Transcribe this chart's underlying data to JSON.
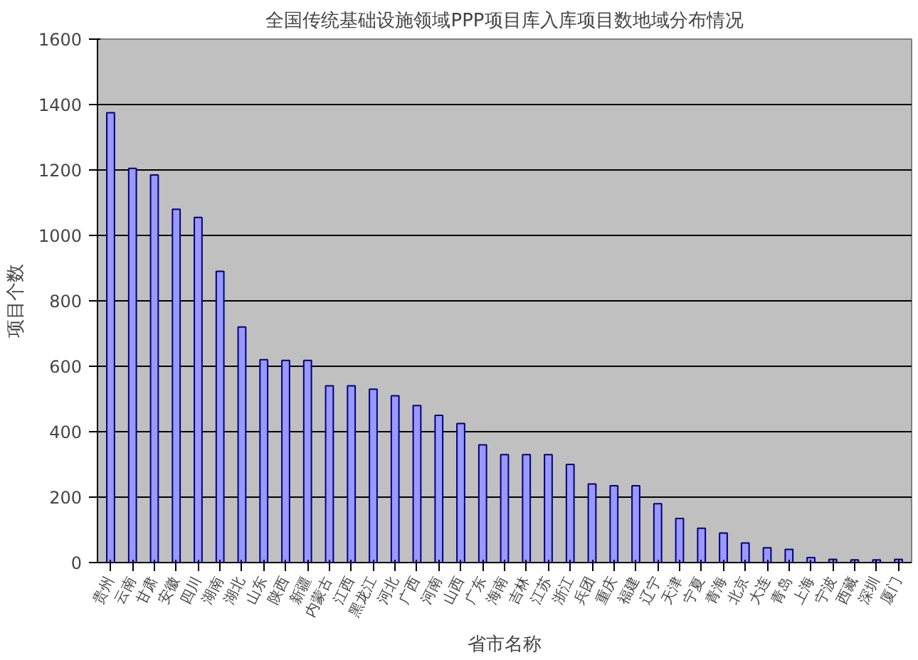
{
  "chart_data": {
    "type": "bar",
    "title": "全国传统基础设施领域PPP项目库入库项目数地域分布情况",
    "xlabel": "省市名称",
    "ylabel": "项目个数",
    "categories": [
      "贵州",
      "云南",
      "甘肃",
      "安徽",
      "四川",
      "湖南",
      "湖北",
      "山东",
      "陕西",
      "新疆",
      "内蒙古",
      "江西",
      "黑龙江",
      "河北",
      "广西",
      "河南",
      "山西",
      "广东",
      "海南",
      "吉林",
      "江苏",
      "浙江",
      "兵团",
      "重庆",
      "福建",
      "辽宁",
      "天津",
      "宁夏",
      "青海",
      "北京",
      "大连",
      "青岛",
      "上海",
      "宁波",
      "西藏",
      "深圳",
      "厦门"
    ],
    "values": [
      1375,
      1205,
      1185,
      1080,
      1055,
      890,
      720,
      620,
      618,
      618,
      540,
      540,
      530,
      510,
      480,
      450,
      425,
      360,
      330,
      330,
      330,
      300,
      240,
      235,
      235,
      180,
      135,
      105,
      90,
      60,
      45,
      40,
      15,
      10,
      8,
      8,
      10
    ],
    "color": "#9999ff",
    "ylim": [
      0,
      1600
    ],
    "yticks": [
      0,
      200,
      400,
      600,
      800,
      1000,
      1200,
      1400,
      1600
    ],
    "grid": "y"
  }
}
